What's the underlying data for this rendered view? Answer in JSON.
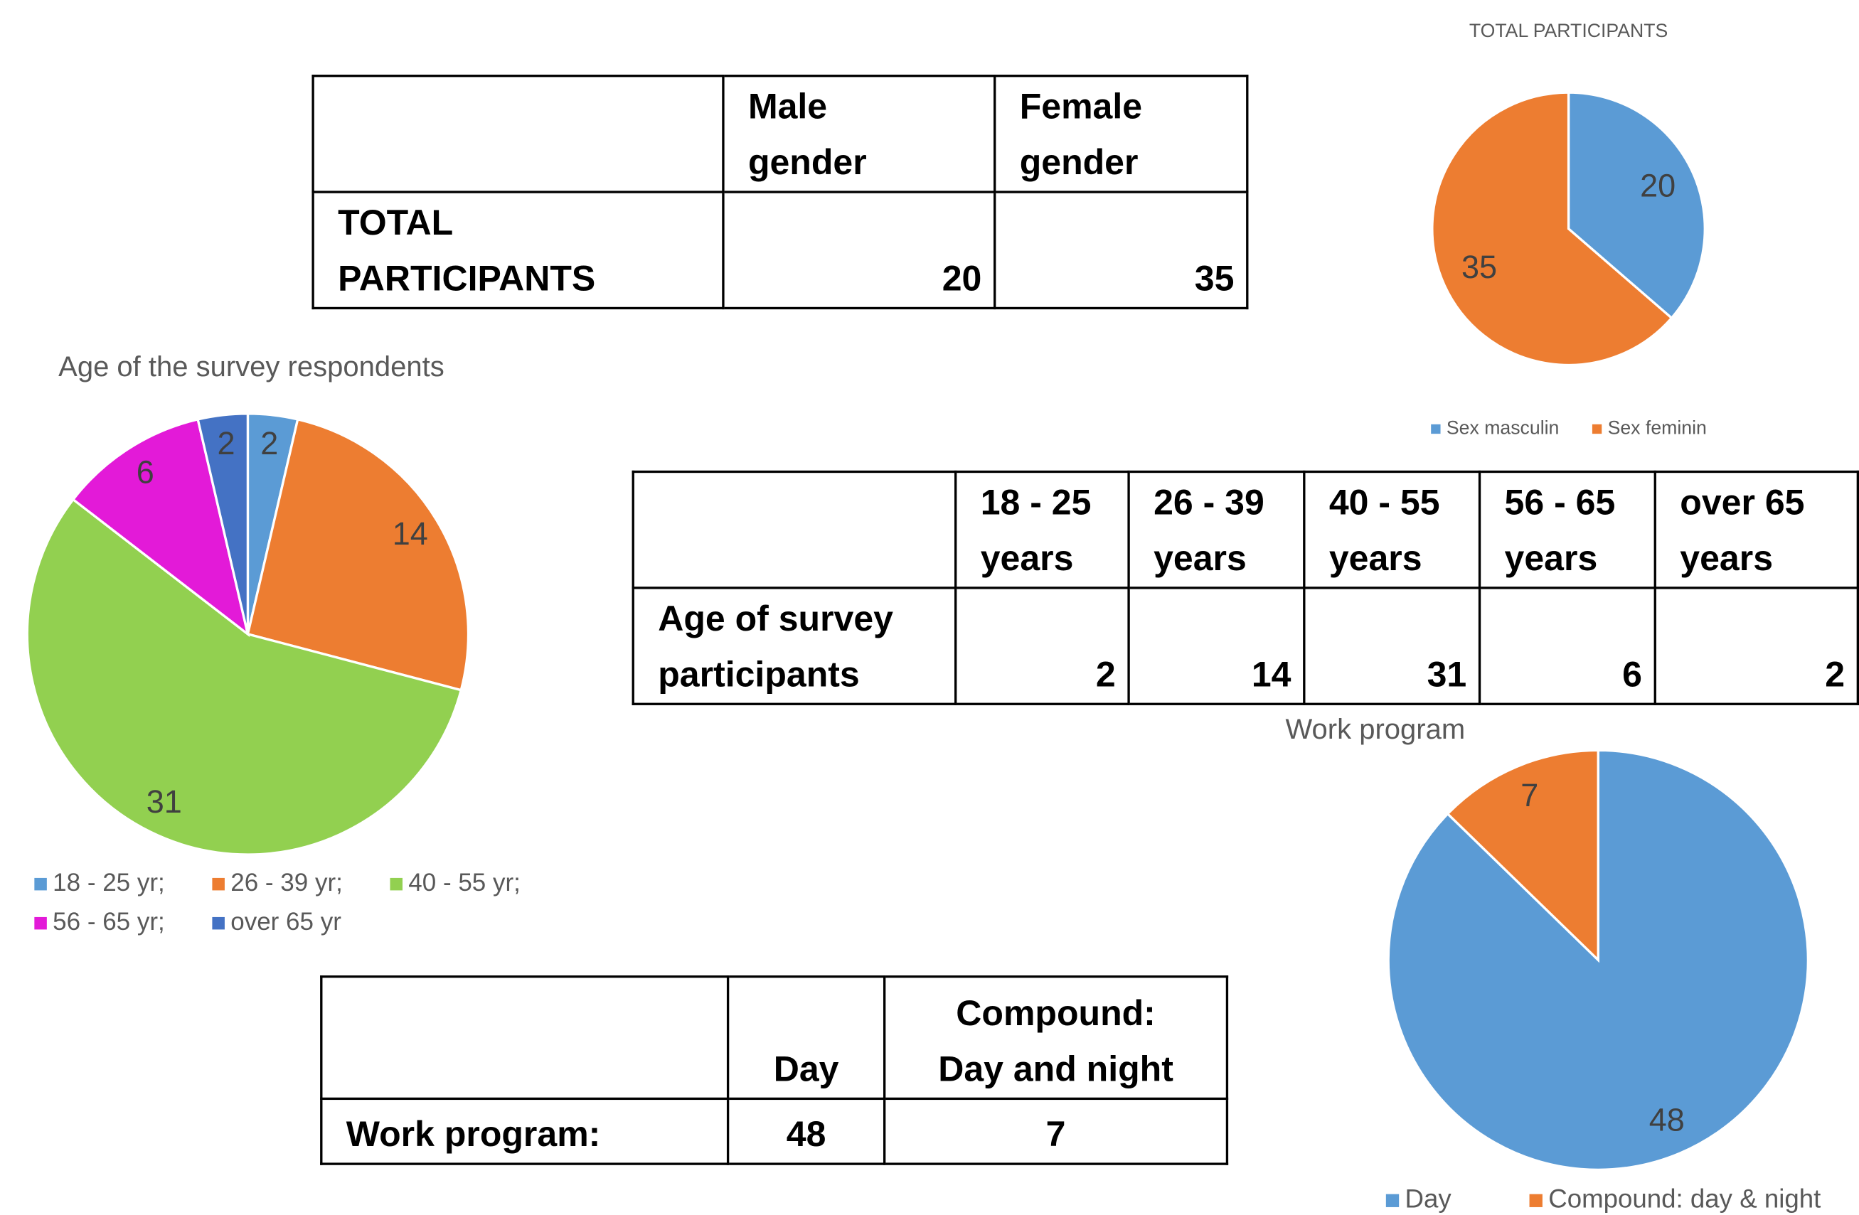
{
  "tables": [
    {
      "columns": [
        "Male\ngender",
        "Female\ngender"
      ],
      "rows": [
        {
          "label": "TOTAL PARTICIPANTS",
          "values": [
            20,
            35
          ]
        }
      ]
    },
    {
      "columns": [
        "18 - 25\nyears",
        "26 - 39\nyears",
        "40 - 55\nyears",
        "56 - 65\nyears",
        "over 65\nyears"
      ],
      "rows": [
        {
          "label": "Age of survey\nparticipants",
          "values": [
            2,
            14,
            31,
            6,
            2
          ]
        }
      ]
    },
    {
      "columns": [
        "Day",
        "Compound:\nDay and night"
      ],
      "rows": [
        {
          "label": "Work program:",
          "values": [
            48,
            7
          ]
        }
      ]
    }
  ],
  "chart_data": [
    {
      "type": "pie",
      "title": "TOTAL PARTICIPANTS",
      "categories": [
        "Sex masculin",
        "Sex feminin"
      ],
      "values": [
        20,
        35
      ],
      "colors": [
        "#5b9bd5",
        "#ed7d31"
      ]
    },
    {
      "type": "pie",
      "title": "Age of the survey respondents",
      "categories": [
        "18 - 25 yr;",
        "26 - 39 yr;",
        "40 - 55 yr;",
        "56 - 65 yr;",
        "over 65 yr"
      ],
      "values": [
        2,
        14,
        31,
        6,
        2
      ],
      "colors": [
        "#5b9bd5",
        "#ed7d31",
        "#92d050",
        "#e31ad8",
        "#4472c4"
      ]
    },
    {
      "type": "pie",
      "title": "Work program",
      "categories": [
        "Day",
        "Compound: day & night"
      ],
      "values": [
        48,
        7
      ],
      "colors": [
        "#5b9bd5",
        "#ed7d31"
      ]
    }
  ]
}
